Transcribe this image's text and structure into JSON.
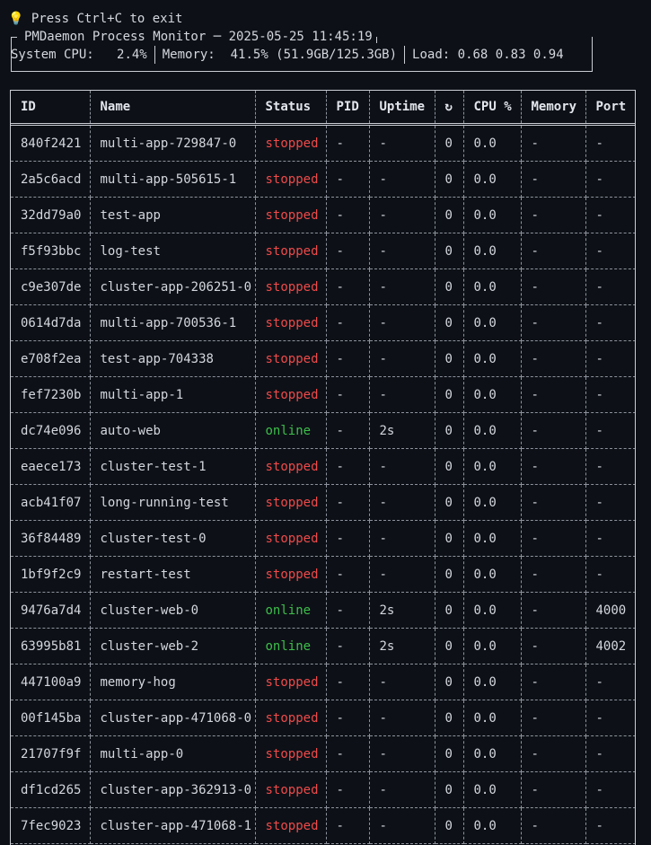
{
  "hint": {
    "icon": "lightbulb-icon",
    "text": "Press Ctrl+C to exit"
  },
  "panel": {
    "title": "PMDaemon Process Monitor ─ 2025-05-25 11:45:19",
    "cpu_label": "System CPU:",
    "cpu_value": "2.4%",
    "memory_label": "Memory:",
    "memory_value": "41.5% (51.9GB/125.3GB)",
    "load_label": "Load:",
    "load_value": "0.68 0.83 0.94"
  },
  "table": {
    "headers": [
      "ID",
      "Name",
      "Status",
      "PID",
      "Uptime",
      "↻",
      "CPU %",
      "Memory",
      "Port"
    ],
    "rows": [
      {
        "id": "840f2421",
        "name": "multi-app-729847-0",
        "status": "stopped",
        "pid": "-",
        "uptime": "-",
        "restarts": "0",
        "cpu": "0.0",
        "memory": "-",
        "port": "-"
      },
      {
        "id": "2a5c6acd",
        "name": "multi-app-505615-1",
        "status": "stopped",
        "pid": "-",
        "uptime": "-",
        "restarts": "0",
        "cpu": "0.0",
        "memory": "-",
        "port": "-"
      },
      {
        "id": "32dd79a0",
        "name": "test-app",
        "status": "stopped",
        "pid": "-",
        "uptime": "-",
        "restarts": "0",
        "cpu": "0.0",
        "memory": "-",
        "port": "-"
      },
      {
        "id": "f5f93bbc",
        "name": "log-test",
        "status": "stopped",
        "pid": "-",
        "uptime": "-",
        "restarts": "0",
        "cpu": "0.0",
        "memory": "-",
        "port": "-"
      },
      {
        "id": "c9e307de",
        "name": "cluster-app-206251-0",
        "status": "stopped",
        "pid": "-",
        "uptime": "-",
        "restarts": "0",
        "cpu": "0.0",
        "memory": "-",
        "port": "-"
      },
      {
        "id": "0614d7da",
        "name": "multi-app-700536-1",
        "status": "stopped",
        "pid": "-",
        "uptime": "-",
        "restarts": "0",
        "cpu": "0.0",
        "memory": "-",
        "port": "-"
      },
      {
        "id": "e708f2ea",
        "name": "test-app-704338",
        "status": "stopped",
        "pid": "-",
        "uptime": "-",
        "restarts": "0",
        "cpu": "0.0",
        "memory": "-",
        "port": "-"
      },
      {
        "id": "fef7230b",
        "name": "multi-app-1",
        "status": "stopped",
        "pid": "-",
        "uptime": "-",
        "restarts": "0",
        "cpu": "0.0",
        "memory": "-",
        "port": "-"
      },
      {
        "id": "dc74e096",
        "name": "auto-web",
        "status": "online",
        "pid": "-",
        "uptime": "2s",
        "restarts": "0",
        "cpu": "0.0",
        "memory": "-",
        "port": "-"
      },
      {
        "id": "eaece173",
        "name": "cluster-test-1",
        "status": "stopped",
        "pid": "-",
        "uptime": "-",
        "restarts": "0",
        "cpu": "0.0",
        "memory": "-",
        "port": "-"
      },
      {
        "id": "acb41f07",
        "name": "long-running-test",
        "status": "stopped",
        "pid": "-",
        "uptime": "-",
        "restarts": "0",
        "cpu": "0.0",
        "memory": "-",
        "port": "-"
      },
      {
        "id": "36f84489",
        "name": "cluster-test-0",
        "status": "stopped",
        "pid": "-",
        "uptime": "-",
        "restarts": "0",
        "cpu": "0.0",
        "memory": "-",
        "port": "-"
      },
      {
        "id": "1bf9f2c9",
        "name": "restart-test",
        "status": "stopped",
        "pid": "-",
        "uptime": "-",
        "restarts": "0",
        "cpu": "0.0",
        "memory": "-",
        "port": "-"
      },
      {
        "id": "9476a7d4",
        "name": "cluster-web-0",
        "status": "online",
        "pid": "-",
        "uptime": "2s",
        "restarts": "0",
        "cpu": "0.0",
        "memory": "-",
        "port": "4000"
      },
      {
        "id": "63995b81",
        "name": "cluster-web-2",
        "status": "online",
        "pid": "-",
        "uptime": "2s",
        "restarts": "0",
        "cpu": "0.0",
        "memory": "-",
        "port": "4002"
      },
      {
        "id": "447100a9",
        "name": "memory-hog",
        "status": "stopped",
        "pid": "-",
        "uptime": "-",
        "restarts": "0",
        "cpu": "0.0",
        "memory": "-",
        "port": "-"
      },
      {
        "id": "00f145ba",
        "name": "cluster-app-471068-0",
        "status": "stopped",
        "pid": "-",
        "uptime": "-",
        "restarts": "0",
        "cpu": "0.0",
        "memory": "-",
        "port": "-"
      },
      {
        "id": "21707f9f",
        "name": "multi-app-0",
        "status": "stopped",
        "pid": "-",
        "uptime": "-",
        "restarts": "0",
        "cpu": "0.0",
        "memory": "-",
        "port": "-"
      },
      {
        "id": "df1cd265",
        "name": "cluster-app-362913-0",
        "status": "stopped",
        "pid": "-",
        "uptime": "-",
        "restarts": "0",
        "cpu": "0.0",
        "memory": "-",
        "port": "-"
      },
      {
        "id": "7fec9023",
        "name": "cluster-app-471068-1",
        "status": "stopped",
        "pid": "-",
        "uptime": "-",
        "restarts": "0",
        "cpu": "0.0",
        "memory": "-",
        "port": "-"
      }
    ]
  },
  "colors": {
    "background": "#0d1117",
    "stopped": "#ef4a4a",
    "online": "#3dbf4a"
  }
}
